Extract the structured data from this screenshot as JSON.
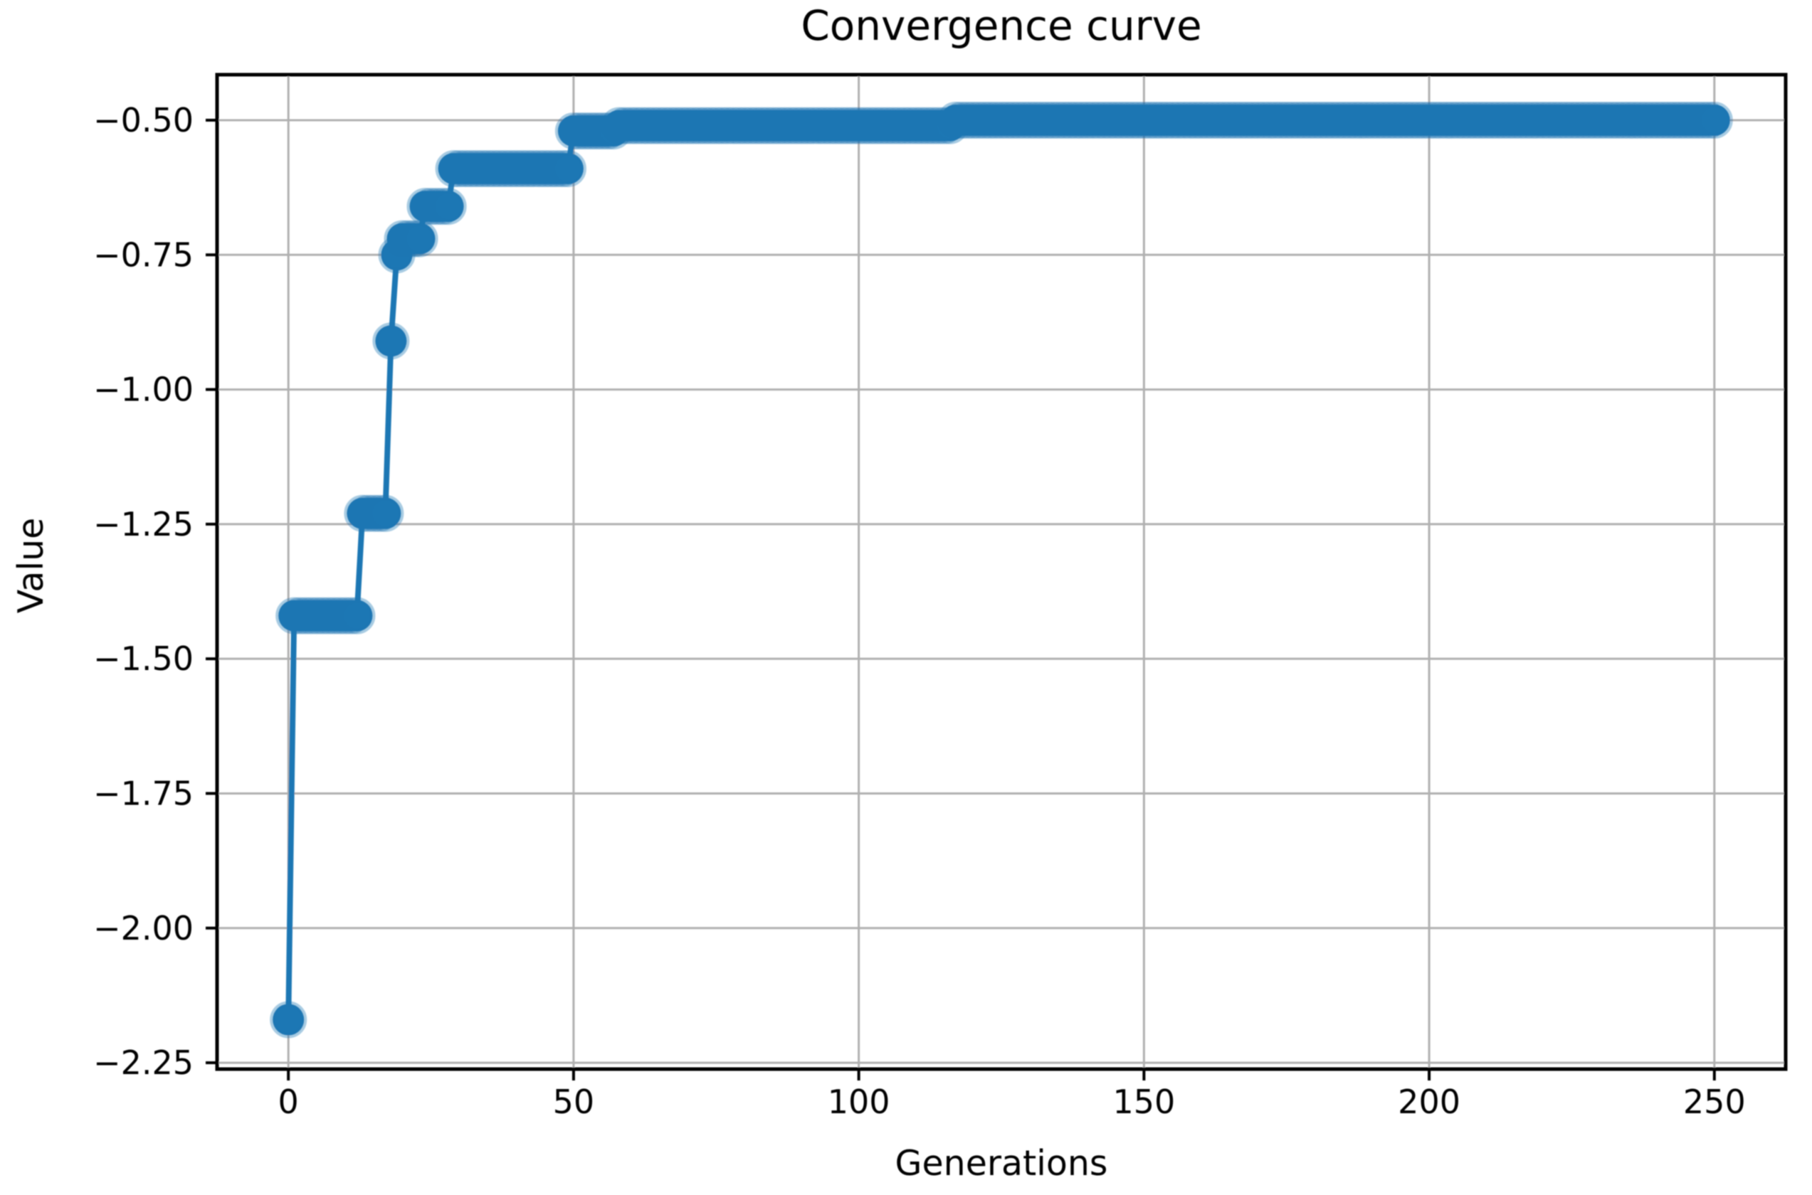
{
  "figure": {
    "title": "Convergence curve",
    "xlabel": "Generations",
    "ylabel": "Value"
  },
  "chart_data": {
    "type": "line",
    "title": "Convergence curve",
    "xlabel": "Generations",
    "ylabel": "Value",
    "legend": null,
    "grid": true,
    "x_ticks": [
      0,
      50,
      100,
      150,
      200,
      250
    ],
    "x_tick_labels": [
      "0",
      "50",
      "100",
      "150",
      "200",
      "250"
    ],
    "y_ticks": [
      -0.5,
      -0.75,
      -1.0,
      -1.25,
      -1.5,
      -1.75,
      -2.0,
      -2.25
    ],
    "y_tick_labels": [
      "−0.50",
      "−0.75",
      "−1.00",
      "−1.25",
      "−1.50",
      "−1.75",
      "−2.00",
      "−2.25"
    ],
    "xlim": [
      -12.5,
      262.5
    ],
    "ylim": [
      -2.2618,
      -0.4155
    ],
    "x_range_generations": [
      0,
      250
    ],
    "marker": "o",
    "line_color": "#1f77b4",
    "segments": [
      {
        "gen_from": 0,
        "gen_to": 0,
        "value": -2.17
      },
      {
        "gen_from": 1,
        "gen_to": 12,
        "value": -1.42
      },
      {
        "gen_from": 13,
        "gen_to": 17,
        "value": -1.23
      },
      {
        "gen_from": 18,
        "gen_to": 18,
        "value": -0.91
      },
      {
        "gen_from": 19,
        "gen_to": 19,
        "value": -0.75
      },
      {
        "gen_from": 20,
        "gen_to": 23,
        "value": -0.72
      },
      {
        "gen_from": 24,
        "gen_to": 28,
        "value": -0.66
      },
      {
        "gen_from": 29,
        "gen_to": 49,
        "value": -0.59
      },
      {
        "gen_from": 50,
        "gen_to": 57,
        "value": -0.52
      },
      {
        "gen_from": 58,
        "gen_to": 116,
        "value": -0.51
      },
      {
        "gen_from": 117,
        "gen_to": 250,
        "value": -0.5
      }
    ]
  },
  "style": {
    "line_color": "#1f77b4",
    "marker_halo_color": "rgba(31,119,180,0.38)",
    "grid_color": "#b0b0b0",
    "spine_color": "#000000",
    "tick_color": "#000000",
    "text_color": "#000000",
    "background": "#ffffff"
  }
}
